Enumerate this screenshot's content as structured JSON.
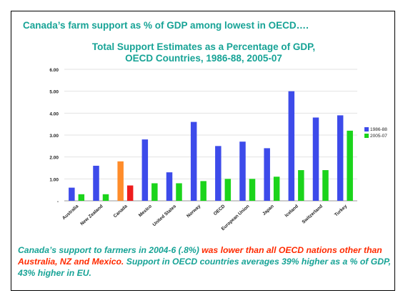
{
  "slide": {
    "headline": "Canada’s farm support as % of GDP among lowest in OECD….",
    "caption_part1": "Canada’s support to farmers in 2004-6 (.8%) ",
    "caption_part2": "was lower than all OECD nations other than Australia, NZ and Mexico.",
    "caption_part3": "  Support in OECD countries averages 39% higher as a % of GDP, 43% higher in EU."
  },
  "colors": {
    "teal_text": "#17a396",
    "red_text": "#ff2a00",
    "series_1986": "#3d4bea",
    "series_2005": "#1bd41b",
    "canada_1986": "#ff8c2a",
    "canada_2005": "#ee1c1c"
  },
  "chart_data": {
    "type": "bar",
    "title_line1": "Total Support Estimates as a Percentage of GDP,",
    "title_line2": "OECD Countries, 1986-88, 2005-07",
    "categories": [
      "Australia",
      "New Zealand",
      "Canada",
      "Mexico",
      "United States",
      "Norway",
      "OECD",
      "European Union",
      "Japan",
      "Iceland",
      "Switzerland",
      "Turkey"
    ],
    "series": [
      {
        "name": "1986-88",
        "values": [
          0.6,
          1.6,
          1.8,
          2.8,
          1.3,
          3.6,
          2.5,
          2.7,
          2.4,
          5.0,
          3.8,
          3.9
        ]
      },
      {
        "name": "2005-07",
        "values": [
          0.3,
          0.3,
          0.7,
          0.8,
          0.8,
          0.9,
          1.0,
          1.0,
          1.1,
          1.4,
          1.4,
          3.2
        ]
      }
    ],
    "highlight_category": "Canada",
    "yticks": [
      "-",
      "1.00",
      "2.00",
      "3.00",
      "4.00",
      "5.00",
      "6.00"
    ],
    "ylim": [
      0,
      6
    ],
    "grid": true,
    "legend_position": "right"
  }
}
